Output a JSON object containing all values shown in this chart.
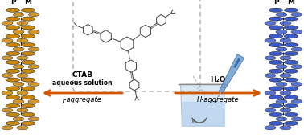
{
  "bg_color": "#ffffff",
  "left_helix_color": "#C8860A",
  "right_helix_color": "#3B5CC8",
  "arrow_color": "#D45500",
  "dashed_box_color": "#aaaaaa",
  "molecule_color": "#444444",
  "beaker_fill_color": "#B8D4EE",
  "beaker_outline": "#888888",
  "syringe_color": "#6699CC",
  "text_CTAB": "CTAB",
  "text_aqueous": "aqueous solution",
  "text_J": "J-aggregate",
  "text_H2O": "H₂O",
  "text_H": "H-aggregate",
  "text_P": "P",
  "text_M": "M",
  "figsize": [
    3.78,
    1.71
  ],
  "dpi": 100
}
